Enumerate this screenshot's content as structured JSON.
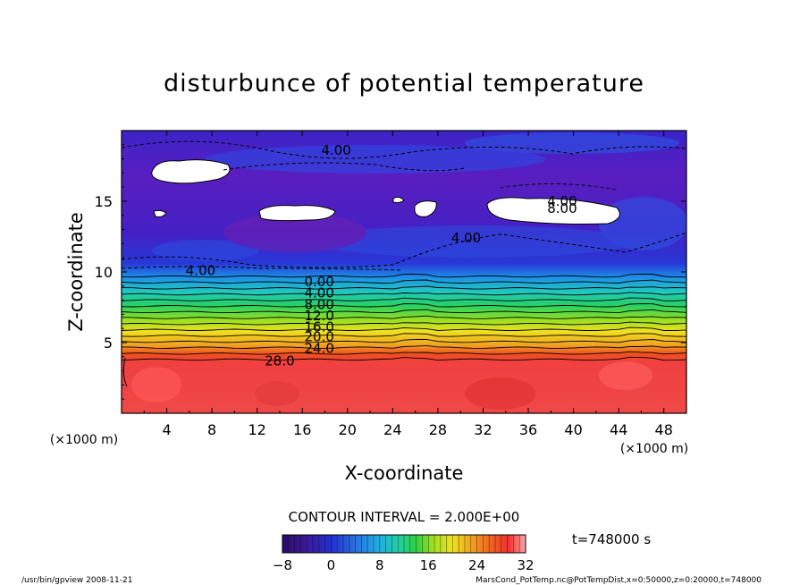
{
  "chart_data": {
    "type": "heatmap",
    "title": "disturbunce of potential temperature",
    "xlabel": "X-coordinate",
    "ylabel": "Z-coordinate",
    "x_unit": "(×1000 m)",
    "z_unit": "(×1000 m)",
    "xlim": [
      0,
      50
    ],
    "ylim": [
      0,
      20
    ],
    "x_ticks": [
      "4",
      "8",
      "12",
      "16",
      "20",
      "24",
      "28",
      "32",
      "36",
      "40",
      "44",
      "48"
    ],
    "y_ticks": [
      "5",
      "10",
      "15"
    ],
    "contour_interval_label": "CONTOUR INTERVAL = 2.000E+00",
    "time_label": "t=748000 s",
    "contour_labels": [
      {
        "text": "4.00",
        "x": 19.0,
        "z": 18.6
      },
      {
        "text": "4.00",
        "x": 39.0,
        "z": 15.0
      },
      {
        "text": "8.00",
        "x": 39.0,
        "z": 14.5
      },
      {
        "text": "4.00",
        "x": 30.5,
        "z": 12.4
      },
      {
        "text": "4.00",
        "x": 7.0,
        "z": 10.1
      },
      {
        "text": "0.00",
        "x": 17.5,
        "z": 9.3
      },
      {
        "text": "4.00",
        "x": 17.5,
        "z": 8.5
      },
      {
        "text": "8.00",
        "x": 17.5,
        "z": 7.7
      },
      {
        "text": "12.0",
        "x": 17.5,
        "z": 6.9
      },
      {
        "text": "16.0",
        "x": 17.5,
        "z": 6.1
      },
      {
        "text": "20.0",
        "x": 17.5,
        "z": 5.4
      },
      {
        "text": "24.0",
        "x": 17.5,
        "z": 4.6
      },
      {
        "text": "28.0",
        "x": 14.0,
        "z": 3.7
      }
    ],
    "color_scale": {
      "min": -8,
      "max": 32,
      "tick_labels": [
        "−8",
        "0",
        "8",
        "16",
        "24",
        "32"
      ],
      "colors": [
        "#2a0a6a",
        "#3c1a9a",
        "#2030d0",
        "#2a70e0",
        "#20b0e0",
        "#20d0a0",
        "#30d040",
        "#a0e020",
        "#f0e020",
        "#f0a020",
        "#f06020",
        "#f03030",
        "#f04848"
      ]
    }
  },
  "footer": {
    "left": "/usr/bin/gpview  2008-11-21",
    "right": "MarsCond_PotTemp.nc@PotTempDist,x=0:50000,z=0:20000,t=748000"
  }
}
